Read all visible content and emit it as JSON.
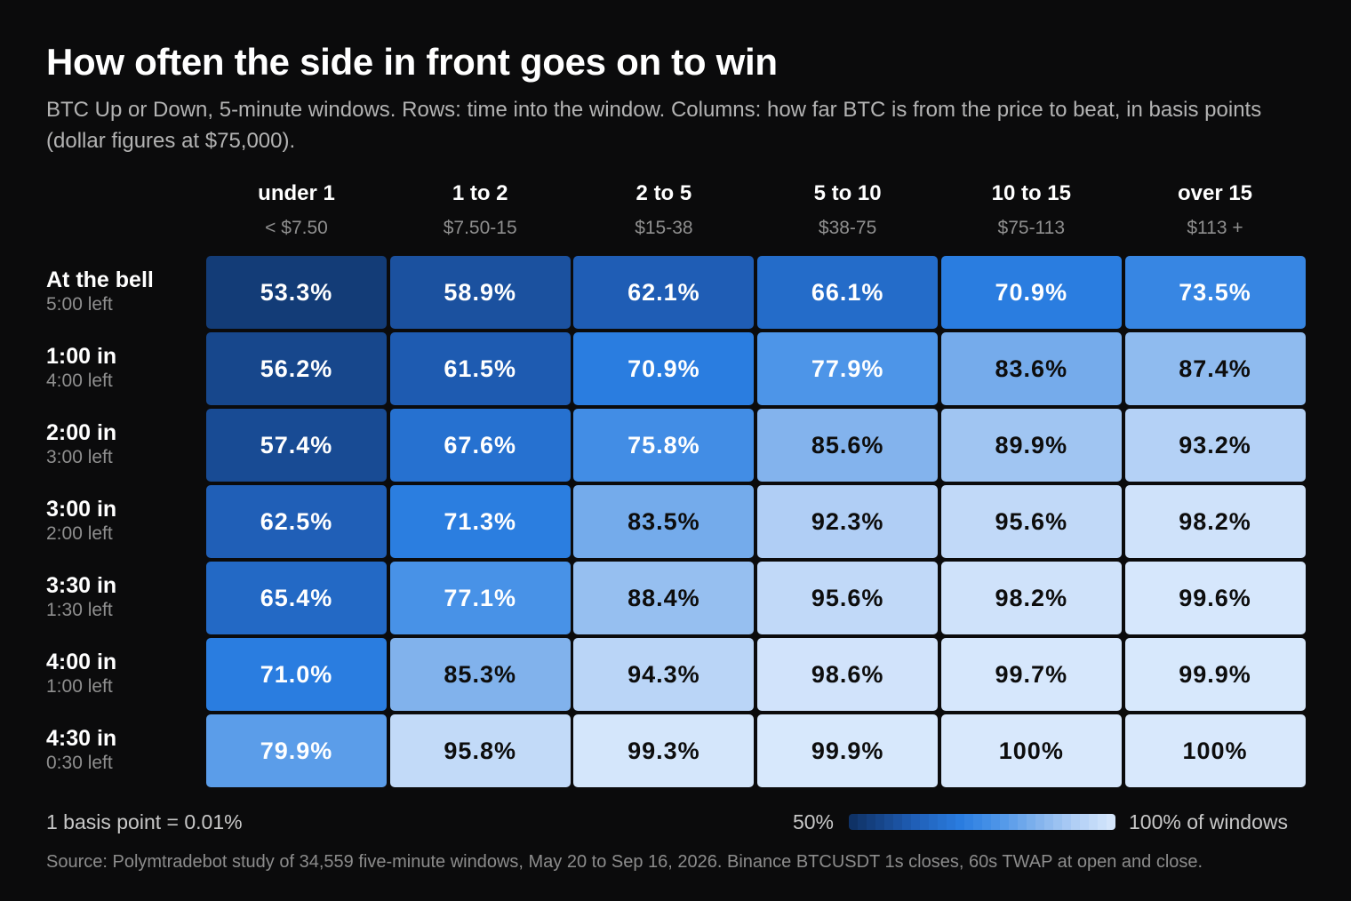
{
  "title": "How often the side in front goes on to win",
  "subtitle": "BTC Up or Down, 5-minute windows. Rows: time into the window. Columns: how far BTC is from the price to beat, in basis points (dollar figures at $75,000).",
  "chart_data": {
    "type": "heatmap",
    "columns": [
      {
        "label": "under 1",
        "sub": "< $7.50"
      },
      {
        "label": "1 to 2",
        "sub": "$7.50-15"
      },
      {
        "label": "2 to 5",
        "sub": "$15-38"
      },
      {
        "label": "5 to 10",
        "sub": "$38-75"
      },
      {
        "label": "10 to 15",
        "sub": "$75-113"
      },
      {
        "label": "over 15",
        "sub": "$113 +"
      }
    ],
    "rows": [
      {
        "label": "At the bell",
        "sub": "5:00 left"
      },
      {
        "label": "1:00 in",
        "sub": "4:00 left"
      },
      {
        "label": "2:00 in",
        "sub": "3:00 left"
      },
      {
        "label": "3:00 in",
        "sub": "2:00 left"
      },
      {
        "label": "3:30 in",
        "sub": "1:30 left"
      },
      {
        "label": "4:00 in",
        "sub": "1:00 left"
      },
      {
        "label": "4:30 in",
        "sub": "0:30 left"
      }
    ],
    "values": [
      [
        53.3,
        58.9,
        62.1,
        66.1,
        70.9,
        73.5
      ],
      [
        56.2,
        61.5,
        70.9,
        77.9,
        83.6,
        87.4
      ],
      [
        57.4,
        67.6,
        75.8,
        85.6,
        89.9,
        93.2
      ],
      [
        62.5,
        71.3,
        83.5,
        92.3,
        95.6,
        98.2
      ],
      [
        65.4,
        77.1,
        88.4,
        95.6,
        98.2,
        99.6
      ],
      [
        71.0,
        85.3,
        94.3,
        98.6,
        99.7,
        99.9
      ],
      [
        79.9,
        95.8,
        99.3,
        99.9,
        100,
        100
      ]
    ],
    "value_labels": [
      [
        "53.3%",
        "58.9%",
        "62.1%",
        "66.1%",
        "70.9%",
        "73.5%"
      ],
      [
        "56.2%",
        "61.5%",
        "70.9%",
        "77.9%",
        "83.6%",
        "87.4%"
      ],
      [
        "57.4%",
        "67.6%",
        "75.8%",
        "85.6%",
        "89.9%",
        "93.2%"
      ],
      [
        "62.5%",
        "71.3%",
        "83.5%",
        "92.3%",
        "95.6%",
        "98.2%"
      ],
      [
        "65.4%",
        "77.1%",
        "88.4%",
        "95.6%",
        "98.2%",
        "99.6%"
      ],
      [
        "71.0%",
        "85.3%",
        "94.3%",
        "98.6%",
        "99.7%",
        "99.9%"
      ],
      [
        "79.9%",
        "95.8%",
        "99.3%",
        "99.9%",
        "100%",
        "100%"
      ]
    ],
    "color_scale": {
      "min": 50,
      "max": 100,
      "stops": [
        {
          "v": 50,
          "color": "#0e2f60"
        },
        {
          "v": 62,
          "color": "#1f5db5"
        },
        {
          "v": 71,
          "color": "#2a7de0"
        },
        {
          "v": 78,
          "color": "#4d95e8"
        },
        {
          "v": 85,
          "color": "#7fb1ec"
        },
        {
          "v": 92,
          "color": "#aecdf5"
        },
        {
          "v": 100,
          "color": "#d8e8fc"
        }
      ],
      "light_text_below": 80
    }
  },
  "footnote": "1 basis point = 0.01%",
  "legend": {
    "min_label": "50%",
    "max_label": "100% of windows"
  },
  "source": "Source: Polymtradebot study of 34,559 five-minute windows, May 20 to Sep 16, 2026. Binance BTCUSDT 1s closes, 60s TWAP at open and close."
}
